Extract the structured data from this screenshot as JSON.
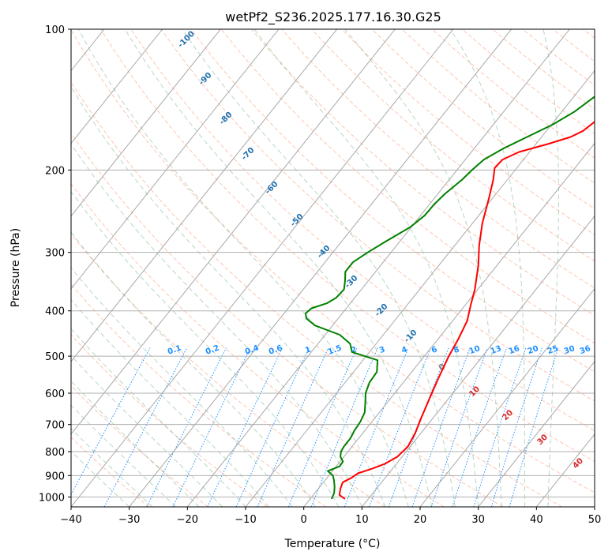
{
  "chart_data": {
    "type": "line",
    "title": "wetPf2_S236.2025.177.16.30.G25",
    "xlabel": "Temperature (°C)",
    "ylabel": "Pressure (hPa)",
    "xlim": [
      -40,
      50
    ],
    "ylim": [
      1050,
      100
    ],
    "y_scale": "log",
    "grid": true,
    "x_ticks": [
      "−40",
      "−30",
      "−20",
      "−10",
      "0",
      "10",
      "20",
      "30",
      "40",
      "50"
    ],
    "y_ticks": [
      {
        "p": 100,
        "label": "100"
      },
      {
        "p": 200,
        "label": "200"
      },
      {
        "p": 300,
        "label": "300"
      },
      {
        "p": 400,
        "label": "400"
      },
      {
        "p": 500,
        "label": "500"
      },
      {
        "p": 600,
        "label": "600"
      },
      {
        "p": 700,
        "label": "700"
      },
      {
        "p": 800,
        "label": "800"
      },
      {
        "p": 900,
        "label": "900"
      },
      {
        "p": 1000,
        "label": "1000"
      }
    ],
    "series": [
      {
        "role": "temperature",
        "color": "#ff0000",
        "points": [
          [
            1010,
            6.0
          ],
          [
            990,
            4.5
          ],
          [
            960,
            3.8
          ],
          [
            930,
            3.3
          ],
          [
            910,
            4.2
          ],
          [
            890,
            4.7
          ],
          [
            870,
            6.5
          ],
          [
            850,
            8.0
          ],
          [
            820,
            9.2
          ],
          [
            780,
            9.6
          ],
          [
            730,
            9.0
          ],
          [
            680,
            8.0
          ],
          [
            620,
            6.8
          ],
          [
            560,
            5.5
          ],
          [
            500,
            4.2
          ],
          [
            460,
            3.5
          ],
          [
            420,
            2.5
          ],
          [
            390,
            1.0
          ],
          [
            360,
            -0.5
          ],
          [
            320,
            -3.2
          ],
          [
            290,
            -5.8
          ],
          [
            260,
            -8.3
          ],
          [
            230,
            -10.6
          ],
          [
            210,
            -12.4
          ],
          [
            198,
            -13.8
          ],
          [
            190,
            -13.6
          ],
          [
            183,
            -11.8
          ],
          [
            176,
            -8.0
          ],
          [
            170,
            -5.0
          ],
          [
            165,
            -3.7
          ],
          [
            155,
            -2.7
          ],
          [
            145,
            -2.6
          ],
          [
            138,
            -2.8
          ],
          [
            130,
            -2.3
          ],
          [
            120,
            -0.8
          ],
          [
            110,
            2.0
          ],
          [
            100,
            5.5
          ]
        ]
      },
      {
        "role": "dewpoint",
        "color": "#008000",
        "points": [
          [
            1010,
            3.7
          ],
          [
            980,
            3.3
          ],
          [
            950,
            2.5
          ],
          [
            920,
            1.5
          ],
          [
            900,
            0.7
          ],
          [
            880,
            -0.8
          ],
          [
            860,
            0.6
          ],
          [
            840,
            0.5
          ],
          [
            820,
            -0.6
          ],
          [
            800,
            -1.2
          ],
          [
            780,
            -1.4
          ],
          [
            750,
            -1.4
          ],
          [
            720,
            -1.8
          ],
          [
            690,
            -2.0
          ],
          [
            660,
            -2.5
          ],
          [
            630,
            -3.7
          ],
          [
            600,
            -5.0
          ],
          [
            570,
            -5.8
          ],
          [
            540,
            -6.0
          ],
          [
            510,
            -7.5
          ],
          [
            490,
            -13.0
          ],
          [
            470,
            -14.5
          ],
          [
            450,
            -17.5
          ],
          [
            430,
            -23.0
          ],
          [
            415,
            -25.5
          ],
          [
            405,
            -26.3
          ],
          [
            395,
            -26.0
          ],
          [
            385,
            -24.0
          ],
          [
            375,
            -23.2
          ],
          [
            360,
            -23.0
          ],
          [
            345,
            -24.0
          ],
          [
            330,
            -25.2
          ],
          [
            315,
            -25.2
          ],
          [
            300,
            -24.0
          ],
          [
            285,
            -22.5
          ],
          [
            265,
            -20.2
          ],
          [
            250,
            -19.3
          ],
          [
            237,
            -19.2
          ],
          [
            225,
            -18.8
          ],
          [
            210,
            -17.8
          ],
          [
            200,
            -17.4
          ],
          [
            190,
            -16.8
          ],
          [
            180,
            -15.0
          ],
          [
            170,
            -12.5
          ],
          [
            160,
            -9.8
          ],
          [
            150,
            -7.8
          ],
          [
            140,
            -6.5
          ],
          [
            130,
            -5.5
          ],
          [
            115,
            -4.0
          ],
          [
            100,
            0.5
          ]
        ]
      }
    ],
    "background_lines": {
      "dry_adiabats": "dashed, color #ff7f50",
      "moist_adiabats": "dashed, color #2e8b57",
      "mixing_ratio": "dotted, color #1e90ff",
      "isotherms": "skewed solid, color #808080"
    },
    "annotations": {
      "blue_dark_labels": [
        "-100",
        "-90",
        "-80",
        "-70",
        "-60",
        "-50",
        "-40",
        "-30",
        "-20",
        "-10"
      ],
      "mixing_ratio_labels": [
        "0.1",
        "0.2",
        "0.4",
        "0.6",
        "1",
        "1.5",
        "2",
        "3",
        "4",
        "6",
        "8",
        "10",
        "13",
        "16",
        "20",
        "25",
        "30",
        "36"
      ],
      "red_labels": [
        "10",
        "20",
        "30",
        "40"
      ],
      "gray_labels": [
        "0"
      ]
    }
  }
}
